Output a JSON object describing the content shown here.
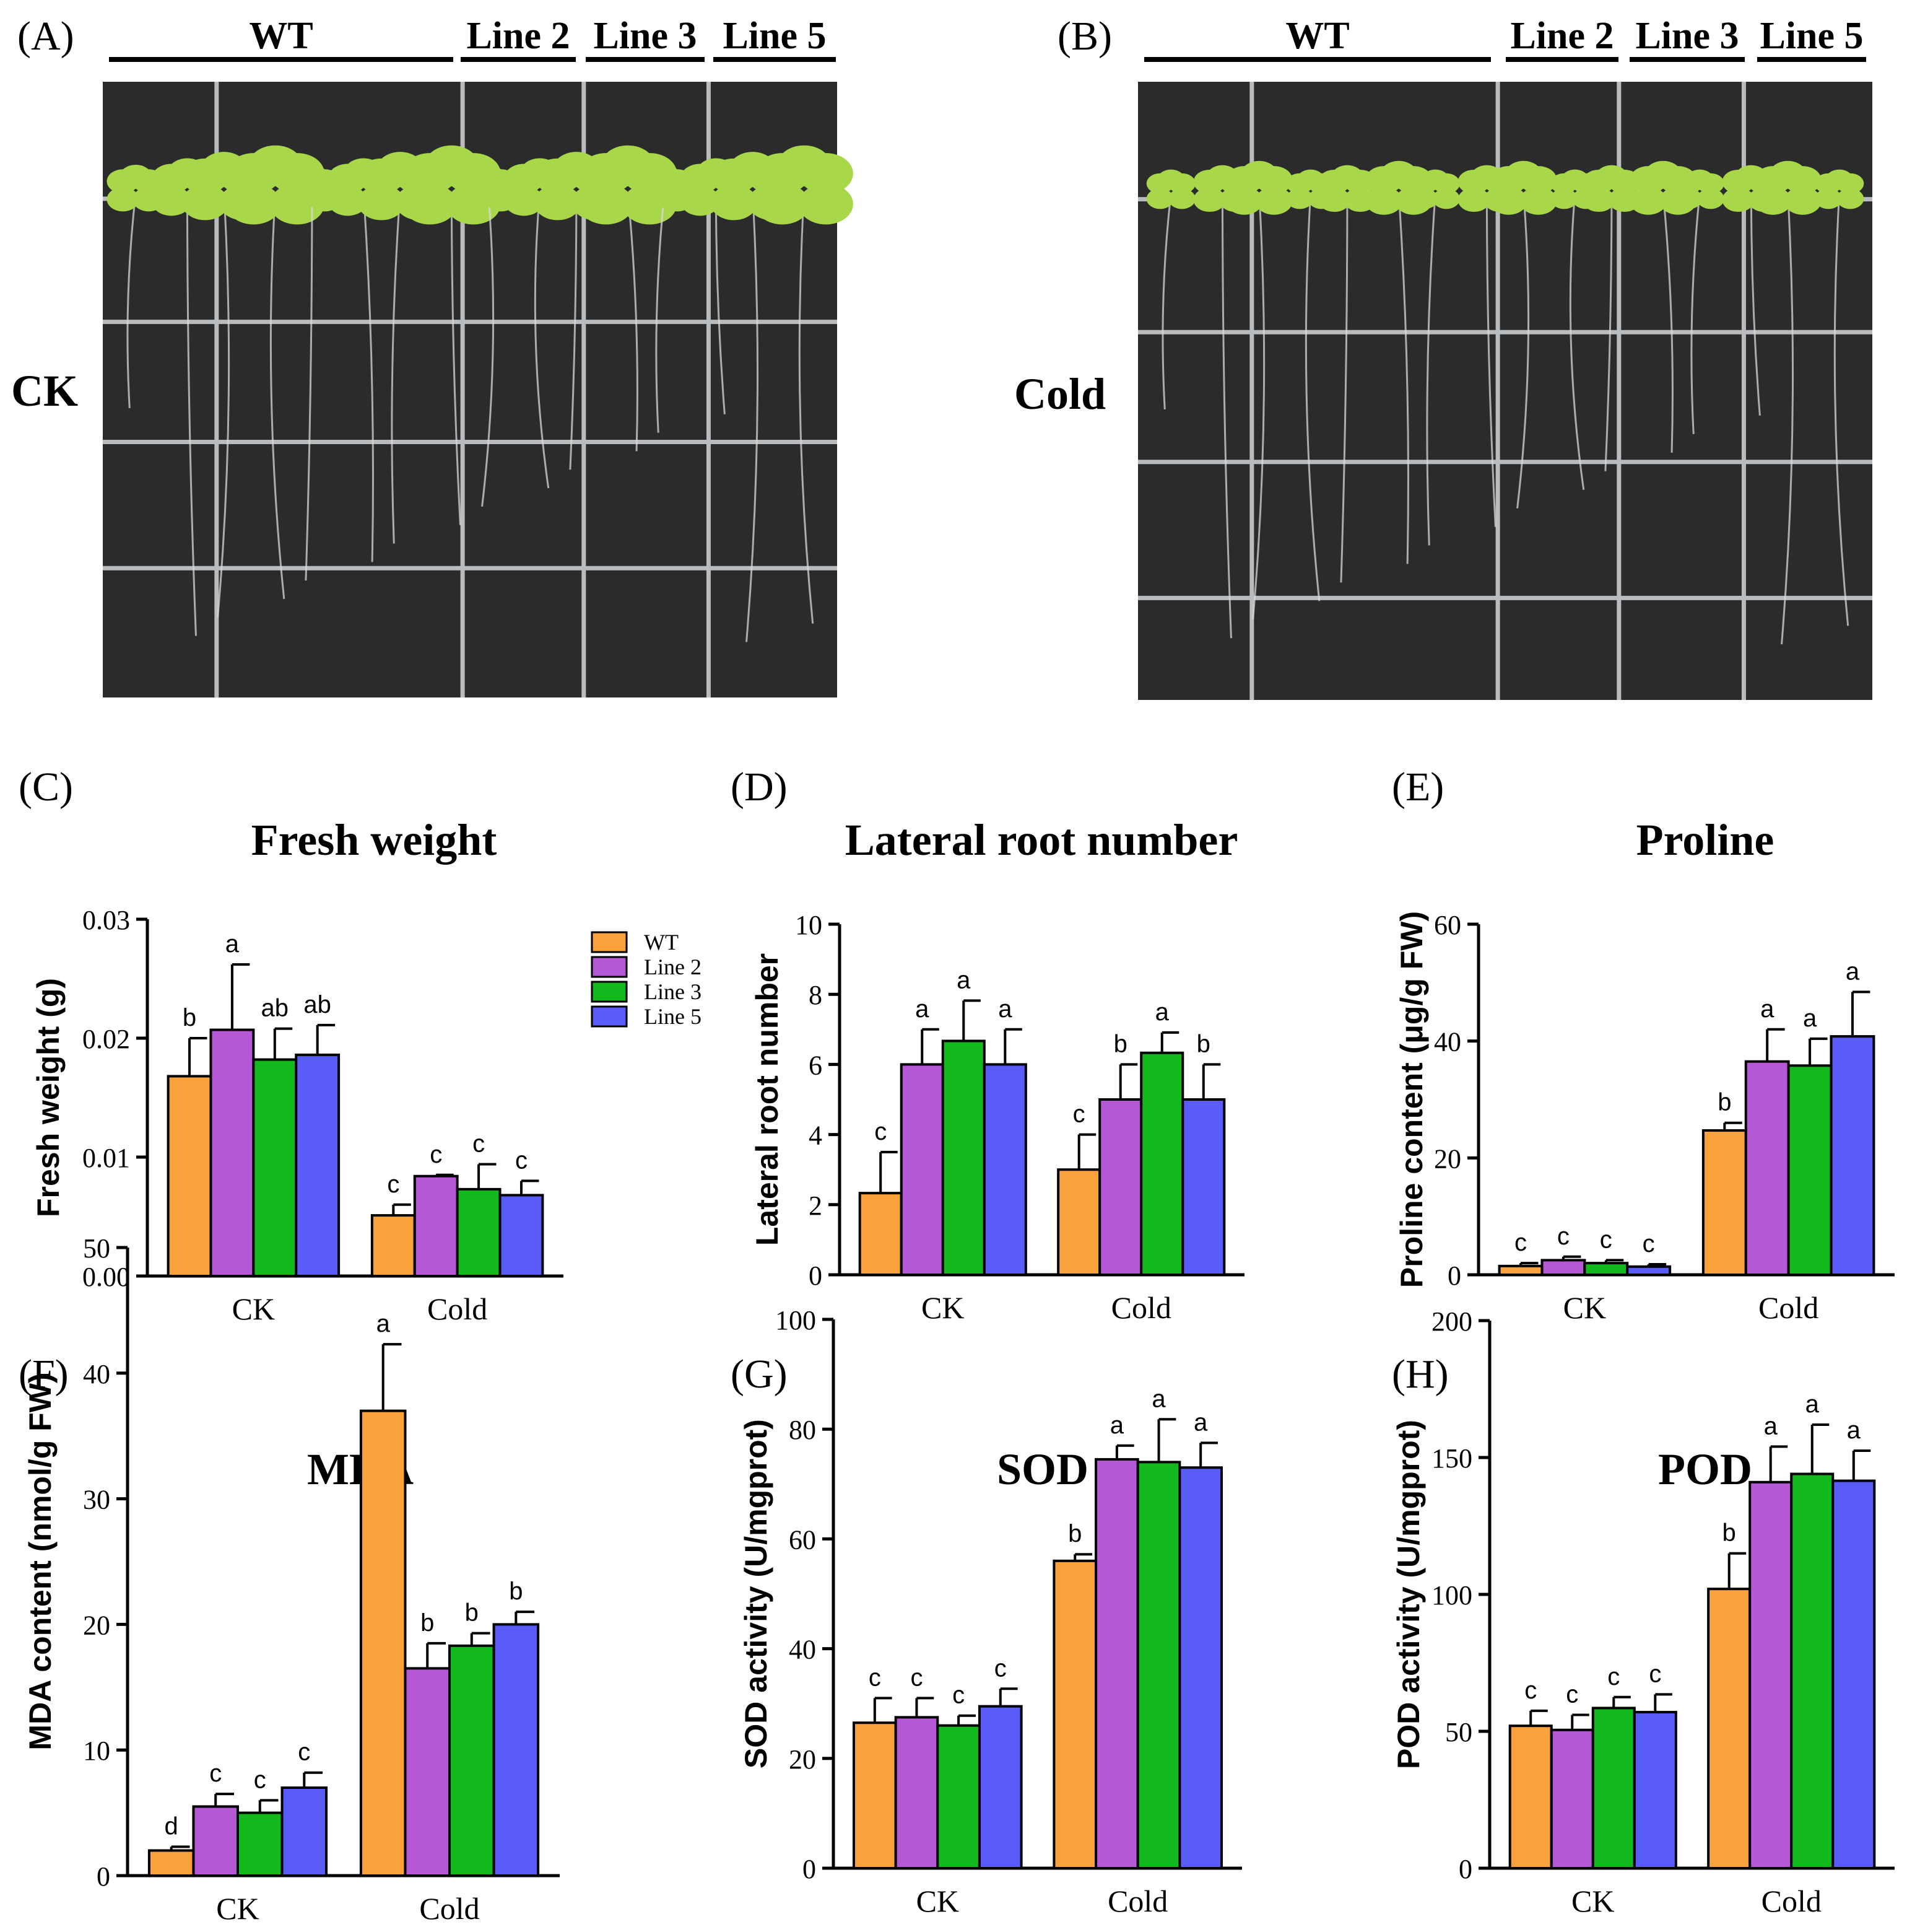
{
  "photos": [
    {
      "panel": "(A)",
      "side_label": "CK",
      "groups": [
        "WT",
        "Line 2",
        "Line 3",
        "Line 5"
      ]
    },
    {
      "panel": "(B)",
      "side_label": "Cold",
      "groups": [
        "WT",
        "Line 2",
        "Line 3",
        "Line 5"
      ]
    }
  ],
  "legend": {
    "entries": [
      "WT",
      "Line 2",
      "Line 3",
      "Line 5"
    ]
  },
  "colors": {
    "series": [
      "#F9A13A",
      "#B558D6",
      "#12B81C",
      "#5A5CF8"
    ],
    "axis": "#000000",
    "photo_bg": "#2b2b2b",
    "grid_line": "#b9bcbf",
    "leaf": "#a8d84a"
  },
  "chart_data": [
    {
      "panel": "(C)",
      "type": "bar",
      "title": "Fresh weight",
      "ylabel": "Fresh weight (g)",
      "xlabel": "",
      "categories": [
        "CK",
        "Cold"
      ],
      "ylim": [
        0,
        0.03
      ],
      "yticks": [
        "0.00",
        "0.01",
        "0.02",
        "0.03"
      ],
      "series": [
        {
          "name": "WT",
          "values": [
            0.0168,
            0.0051
          ],
          "errors": [
            0.0032,
            0.0009
          ],
          "letters": [
            "b",
            "c"
          ]
        },
        {
          "name": "Line 2",
          "values": [
            0.0207,
            0.0084
          ],
          "errors": [
            0.0055,
            0.0001
          ],
          "letters": [
            "a",
            "c"
          ]
        },
        {
          "name": "Line 3",
          "values": [
            0.0182,
            0.0073
          ],
          "errors": [
            0.0026,
            0.0021
          ],
          "letters": [
            "ab",
            "c"
          ]
        },
        {
          "name": "Line 5",
          "values": [
            0.0186,
            0.0068
          ],
          "errors": [
            0.0025,
            0.0012
          ],
          "letters": [
            "ab",
            "c"
          ]
        }
      ]
    },
    {
      "panel": "(D)",
      "type": "bar",
      "title": "Lateral root number",
      "ylabel": "Lateral root number",
      "xlabel": "",
      "categories": [
        "CK",
        "Cold"
      ],
      "ylim": [
        0,
        10
      ],
      "yticks": [
        "0",
        "2",
        "4",
        "6",
        "8",
        "10"
      ],
      "series": [
        {
          "name": "WT",
          "values": [
            2.33,
            3.0
          ],
          "errors": [
            1.17,
            1.0
          ],
          "letters": [
            "c",
            "c"
          ]
        },
        {
          "name": "Line 2",
          "values": [
            6.0,
            5.0
          ],
          "errors": [
            1.0,
            1.0
          ],
          "letters": [
            "a",
            "b"
          ]
        },
        {
          "name": "Line 3",
          "values": [
            6.67,
            6.33
          ],
          "errors": [
            1.15,
            0.58
          ],
          "letters": [
            "a",
            "a"
          ]
        },
        {
          "name": "Line 5",
          "values": [
            6.0,
            5.0
          ],
          "errors": [
            1.0,
            1.0
          ],
          "letters": [
            "a",
            "b"
          ]
        }
      ]
    },
    {
      "panel": "(E)",
      "type": "bar",
      "title": "Proline",
      "ylabel": "Proline content (μg/g FW)",
      "xlabel": "",
      "categories": [
        "CK",
        "Cold"
      ],
      "ylim": [
        0,
        60
      ],
      "yticks": [
        "0",
        "20",
        "40",
        "60"
      ],
      "series": [
        {
          "name": "WT",
          "values": [
            1.5,
            24.7
          ],
          "errors": [
            0.5,
            1.3
          ],
          "letters": [
            "c",
            "b"
          ]
        },
        {
          "name": "Line 2",
          "values": [
            2.5,
            36.5
          ],
          "errors": [
            0.6,
            5.5
          ],
          "letters": [
            "c",
            "a"
          ]
        },
        {
          "name": "Line 3",
          "values": [
            2.0,
            35.8
          ],
          "errors": [
            0.5,
            4.6
          ],
          "letters": [
            "c",
            "a"
          ]
        },
        {
          "name": "Line 5",
          "values": [
            1.4,
            40.8
          ],
          "errors": [
            0.4,
            7.6
          ],
          "letters": [
            "c",
            "a"
          ]
        }
      ]
    },
    {
      "panel": "(F)",
      "type": "bar",
      "title": "MDA",
      "ylabel": "MDA content (nmol/g FW)",
      "xlabel": "",
      "categories": [
        "CK",
        "Cold"
      ],
      "ylim": [
        0,
        50
      ],
      "yticks": [
        "0",
        "10",
        "20",
        "30",
        "40",
        "50"
      ],
      "series": [
        {
          "name": "WT",
          "values": [
            2.0,
            37.0
          ],
          "errors": [
            0.3,
            5.3
          ],
          "letters": [
            "d",
            "a"
          ]
        },
        {
          "name": "Line 2",
          "values": [
            5.5,
            16.5
          ],
          "errors": [
            1.0,
            2.0
          ],
          "letters": [
            "c",
            "b"
          ]
        },
        {
          "name": "Line 3",
          "values": [
            5.0,
            18.3
          ],
          "errors": [
            1.0,
            1.0
          ],
          "letters": [
            "c",
            "b"
          ]
        },
        {
          "name": "Line 5",
          "values": [
            7.0,
            20.0
          ],
          "errors": [
            1.2,
            1.0
          ],
          "letters": [
            "c",
            "b"
          ]
        }
      ]
    },
    {
      "panel": "(G)",
      "type": "bar",
      "title": "SOD",
      "ylabel": "SOD activity (U/mgprot)",
      "xlabel": "",
      "categories": [
        "CK",
        "Cold"
      ],
      "ylim": [
        0,
        100
      ],
      "yticks": [
        "0",
        "20",
        "40",
        "60",
        "80",
        "100"
      ],
      "series": [
        {
          "name": "WT",
          "values": [
            26.5,
            56.0
          ],
          "errors": [
            4.5,
            1.2
          ],
          "letters": [
            "c",
            "b"
          ]
        },
        {
          "name": "Line 2",
          "values": [
            27.5,
            74.5
          ],
          "errors": [
            3.5,
            2.5
          ],
          "letters": [
            "c",
            "a"
          ]
        },
        {
          "name": "Line 3",
          "values": [
            26.0,
            74.0
          ],
          "errors": [
            1.8,
            7.8
          ],
          "letters": [
            "c",
            "a"
          ]
        },
        {
          "name": "Line 5",
          "values": [
            29.5,
            73.0
          ],
          "errors": [
            3.2,
            4.5
          ],
          "letters": [
            "c",
            "a"
          ]
        }
      ]
    },
    {
      "panel": "(H)",
      "type": "bar",
      "title": "POD",
      "ylabel": "POD activity (U/mgprot)",
      "xlabel": "",
      "categories": [
        "CK",
        "Cold"
      ],
      "ylim": [
        0,
        200
      ],
      "yticks": [
        "0",
        "50",
        "100",
        "150",
        "200"
      ],
      "series": [
        {
          "name": "WT",
          "values": [
            52.0,
            102.0
          ],
          "errors": [
            5.5,
            13.0
          ],
          "letters": [
            "c",
            "b"
          ]
        },
        {
          "name": "Line 2",
          "values": [
            50.5,
            141.0
          ],
          "errors": [
            5.5,
            13.0
          ],
          "letters": [
            "c",
            "a"
          ]
        },
        {
          "name": "Line 3",
          "values": [
            58.5,
            144.0
          ],
          "errors": [
            4.0,
            18.0
          ],
          "letters": [
            "c",
            "a"
          ]
        },
        {
          "name": "Line 5",
          "values": [
            57.0,
            141.5
          ],
          "errors": [
            6.5,
            11.0
          ],
          "letters": [
            "c",
            "a"
          ]
        }
      ]
    }
  ]
}
